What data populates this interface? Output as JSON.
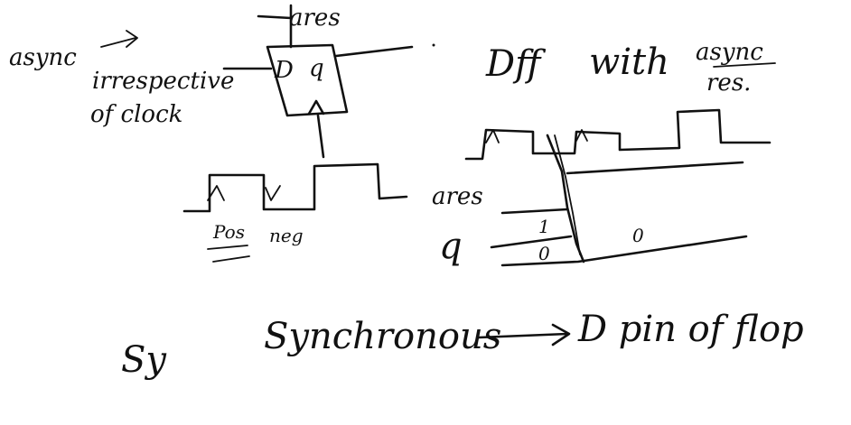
{
  "notes": {
    "async_label": "async",
    "irrespective": "irrespective",
    "of_clock": "of clock",
    "ares_top": "ares",
    "dff_D": "D",
    "dff_Q": "q",
    "title_dff": "Dff",
    "title_with": "with",
    "title_async": "async",
    "title_res": "res.",
    "pos_label": "Pos",
    "neg_label": "neg",
    "ares_wave_label": "ares",
    "q_wave_label": "q",
    "q_zero_left": "0",
    "q_one_left": "1",
    "q_zero_right": "0",
    "sync_abbrev": "Sy",
    "synchronous": "Synchronous",
    "d_pin_of_flop": "D pin of flop"
  },
  "colors": {
    "ink": "#111111",
    "background": "#ffffff"
  }
}
